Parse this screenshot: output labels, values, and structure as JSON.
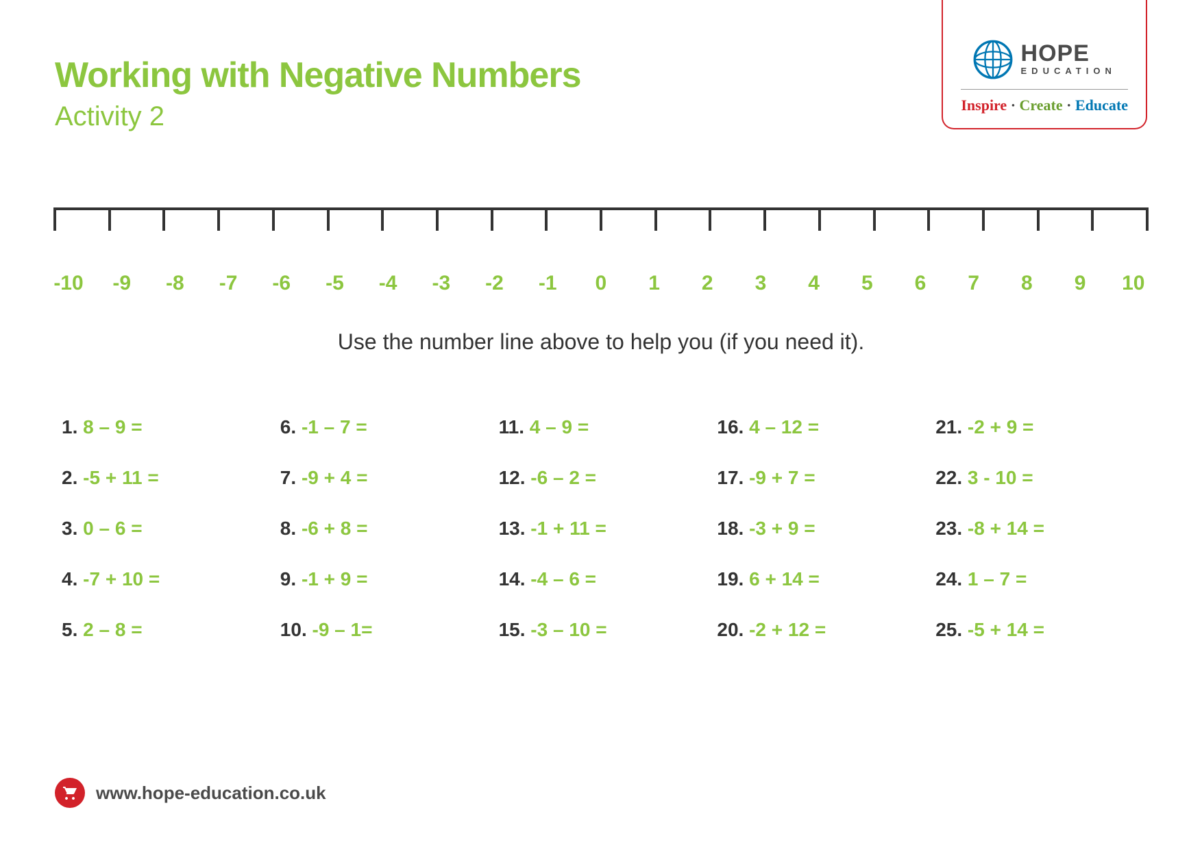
{
  "colors": {
    "accent": "#8cc63f",
    "text": "#333333",
    "red": "#d2222a",
    "tag_green": "#6a9e2e",
    "tag_blue": "#0077b3",
    "logo_gray": "#4a4a4a"
  },
  "header": {
    "title": "Working with Negative Numbers",
    "subtitle": "Activity 2"
  },
  "logo": {
    "main": "HOPE",
    "sub": "EDUCATION",
    "tagline_parts": [
      "Inspire",
      "Create",
      "Educate"
    ]
  },
  "numberline": {
    "min": -10,
    "max": 10,
    "labels": [
      "-10",
      "-9",
      "-8",
      "-7",
      "-6",
      "-5",
      "-4",
      "-3",
      "-2",
      "-1",
      "0",
      "1",
      "2",
      "3",
      "4",
      "5",
      "6",
      "7",
      "8",
      "9",
      "10"
    ],
    "label_color": "#8cc63f",
    "label_fontsize": 30,
    "tick_color": "#333333"
  },
  "instruction": "Use the number line above to help you (if you need it).",
  "problems": [
    {
      "n": "1.",
      "expr": "8 – 9 ="
    },
    {
      "n": "2.",
      "expr": "-5 + 11 ="
    },
    {
      "n": "3.",
      "expr": "0 – 6 ="
    },
    {
      "n": "4.",
      "expr": "-7 + 10 ="
    },
    {
      "n": "5.",
      "expr": "2 – 8 ="
    },
    {
      "n": "6.",
      "expr": "-1 – 7 ="
    },
    {
      "n": "7.",
      "expr": "-9 + 4 ="
    },
    {
      "n": "8.",
      "expr": "-6 + 8 ="
    },
    {
      "n": "9.",
      "expr": "-1 + 9 ="
    },
    {
      "n": "10.",
      "expr": "-9 – 1="
    },
    {
      "n": "11.",
      "expr": "4 – 9 ="
    },
    {
      "n": "12.",
      "expr": "-6 – 2 ="
    },
    {
      "n": "13.",
      "expr": "-1 + 11 ="
    },
    {
      "n": "14.",
      "expr": "-4 – 6 ="
    },
    {
      "n": "15.",
      "expr": "-3 – 10 ="
    },
    {
      "n": "16.",
      "expr": "4 – 12 ="
    },
    {
      "n": "17.",
      "expr": "-9 + 7 ="
    },
    {
      "n": "18.",
      "expr": "-3 + 9 ="
    },
    {
      "n": "19.",
      "expr": "6 + 14 ="
    },
    {
      "n": "20.",
      "expr": "-2 + 12 ="
    },
    {
      "n": "21.",
      "expr": "-2 + 9 ="
    },
    {
      "n": "22.",
      "expr": "3 - 10 ="
    },
    {
      "n": "23.",
      "expr": "-8 + 14 ="
    },
    {
      "n": "24.",
      "expr": "1 – 7 ="
    },
    {
      "n": "25.",
      "expr": "-5 + 14 ="
    }
  ],
  "problem_style": {
    "number_color": "#333333",
    "expr_color": "#8cc63f",
    "fontsize": 28,
    "fontweight": 800,
    "columns": 5,
    "rows": 5
  },
  "footer": {
    "url": "www.hope-education.co.uk"
  }
}
